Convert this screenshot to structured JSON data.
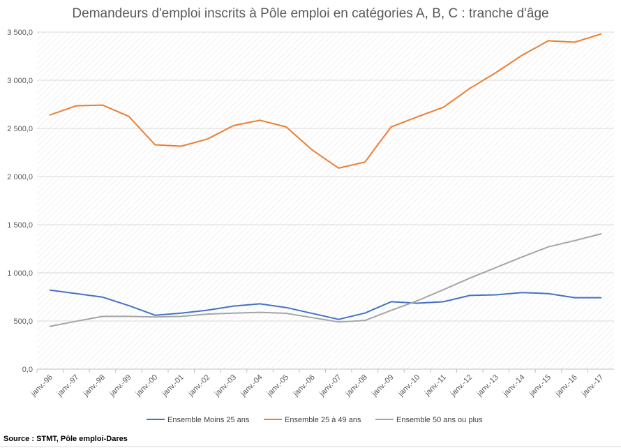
{
  "chart_data": {
    "type": "line",
    "title": "Demandeurs d'emploi inscrits à Pôle emploi en catégories A, B, C : tranche d'âge",
    "categories": [
      "janv.-96",
      "janv.-97",
      "janv.-98",
      "janv.-99",
      "janv.-00",
      "janv.-01",
      "janv.-02",
      "janv.-03",
      "janv.-04",
      "janv.-05",
      "janv.-06",
      "janv.-07",
      "janv.-08",
      "janv.-09",
      "janv.-10",
      "janv.-11",
      "janv.-12",
      "janv.-13",
      "janv.-14",
      "janv.-15",
      "janv.-16",
      "janv.-17"
    ],
    "y_ticks": [
      "0,0",
      "500,0",
      "1 000,0",
      "1 500,0",
      "2 000,0",
      "2 500,0",
      "3 000,0",
      "3 500,0"
    ],
    "ylim": [
      0,
      3500
    ],
    "grid": true,
    "legend_position": "bottom",
    "series": [
      {
        "name": "Ensemble Moins 25 ans",
        "color": "#4472C4",
        "values": [
          820,
          785,
          748,
          660,
          560,
          582,
          612,
          655,
          678,
          640,
          578,
          517,
          582,
          700,
          685,
          700,
          765,
          772,
          795,
          785,
          742,
          742
        ]
      },
      {
        "name": "Ensemble 25 à 49 ans",
        "color": "#ED7D31",
        "values": [
          2640,
          2735,
          2742,
          2625,
          2330,
          2315,
          2390,
          2530,
          2585,
          2515,
          2275,
          2088,
          2150,
          2515,
          2620,
          2720,
          2915,
          3080,
          3260,
          3410,
          3395,
          3480
        ]
      },
      {
        "name": "Ensemble 50 ans ou plus",
        "color": "#A5A5A5",
        "values": [
          445,
          498,
          548,
          548,
          542,
          548,
          572,
          582,
          590,
          580,
          535,
          490,
          505,
          610,
          710,
          825,
          945,
          1055,
          1165,
          1270,
          1335,
          1405
        ]
      }
    ],
    "source": "Source : STMT, Pôle emploi-Dares"
  }
}
